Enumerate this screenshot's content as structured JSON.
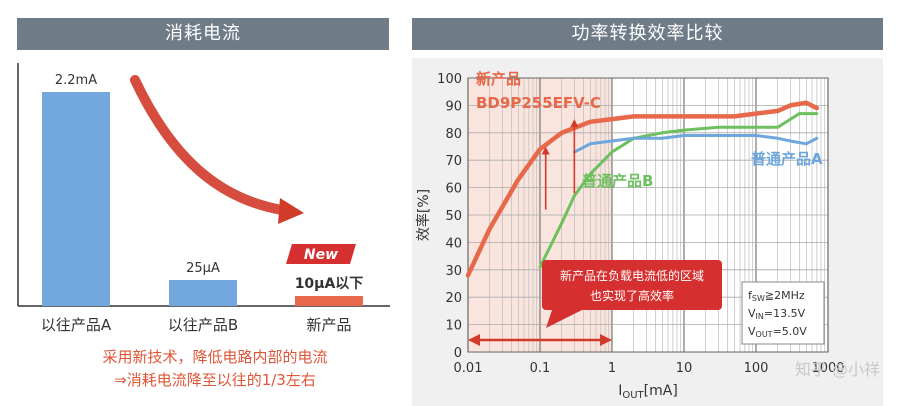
{
  "left_panel": {
    "header": "消耗电流",
    "bars": [
      {
        "label": "以往产品A",
        "value": 2200,
        "value_label": "2.2mA",
        "color": "#72a8dd"
      },
      {
        "label": "以往产品B",
        "value": 25,
        "value_label": "25µA",
        "color": "#72a8dd"
      },
      {
        "label": "新产品",
        "value": 10,
        "value_label": "10µA以下",
        "color": "#e86a4c"
      }
    ],
    "new_badge": "New",
    "note_line1": "采用新技术，降低电路内部的电流",
    "note_line2": "⇒消耗电流降至以往的1/3左右"
  },
  "right_panel": {
    "header": "功率转换效率比较",
    "callout": "新产品在负载电流低的区域\n也实现了高效率",
    "conditions": [
      "f_SW≧2MHz",
      "V_IN=13.5V",
      "V_OUT=5.0V"
    ]
  },
  "chart_data": [
    {
      "type": "bar",
      "categories": [
        "以往产品A",
        "以往产品B",
        "新产品"
      ],
      "values": [
        2200,
        25,
        10
      ],
      "data_labels": [
        "2.2mA",
        "25µA",
        "10µA以下"
      ],
      "title": "消耗电流",
      "xlabel": "",
      "ylabel": ""
    },
    {
      "type": "line",
      "title": "功率转换效率比较",
      "xlabel": "I_OUT[mA]",
      "ylabel": "效率[%]",
      "x_scale": "log",
      "xlim": [
        0.01,
        1000
      ],
      "ylim": [
        0,
        100
      ],
      "x_ticks": [
        "0.01",
        "0.1",
        "1",
        "10",
        "100",
        "1000"
      ],
      "y_ticks": [
        0,
        10,
        20,
        30,
        40,
        50,
        60,
        70,
        80,
        90,
        100
      ],
      "grid": true,
      "series": [
        {
          "name": "新产品\nBD9P255EFV-C",
          "color": "#e8684a",
          "x": [
            0.01,
            0.02,
            0.05,
            0.1,
            0.2,
            0.5,
            1,
            2,
            5,
            10,
            50,
            100,
            200,
            300,
            500,
            700
          ],
          "y": [
            28,
            45,
            63,
            74,
            80,
            84,
            85,
            86,
            86,
            86,
            86,
            87,
            88,
            90,
            91,
            89
          ]
        },
        {
          "name": "普通产品B",
          "color": "#6cc05e",
          "x": [
            0.1,
            0.2,
            0.3,
            0.5,
            1,
            2,
            5,
            10,
            30,
            100,
            200,
            400,
            700
          ],
          "y": [
            31,
            47,
            57,
            65,
            73,
            78,
            80,
            81,
            82,
            82,
            82,
            87,
            87
          ]
        },
        {
          "name": "普通产品A",
          "color": "#6ea7dd",
          "x": [
            0.3,
            0.5,
            1,
            2,
            5,
            10,
            30,
            100,
            200,
            300,
            500,
            700
          ],
          "y": [
            73,
            76,
            77,
            78,
            78,
            79,
            79,
            79,
            78,
            77,
            76,
            78
          ]
        }
      ]
    }
  ]
}
